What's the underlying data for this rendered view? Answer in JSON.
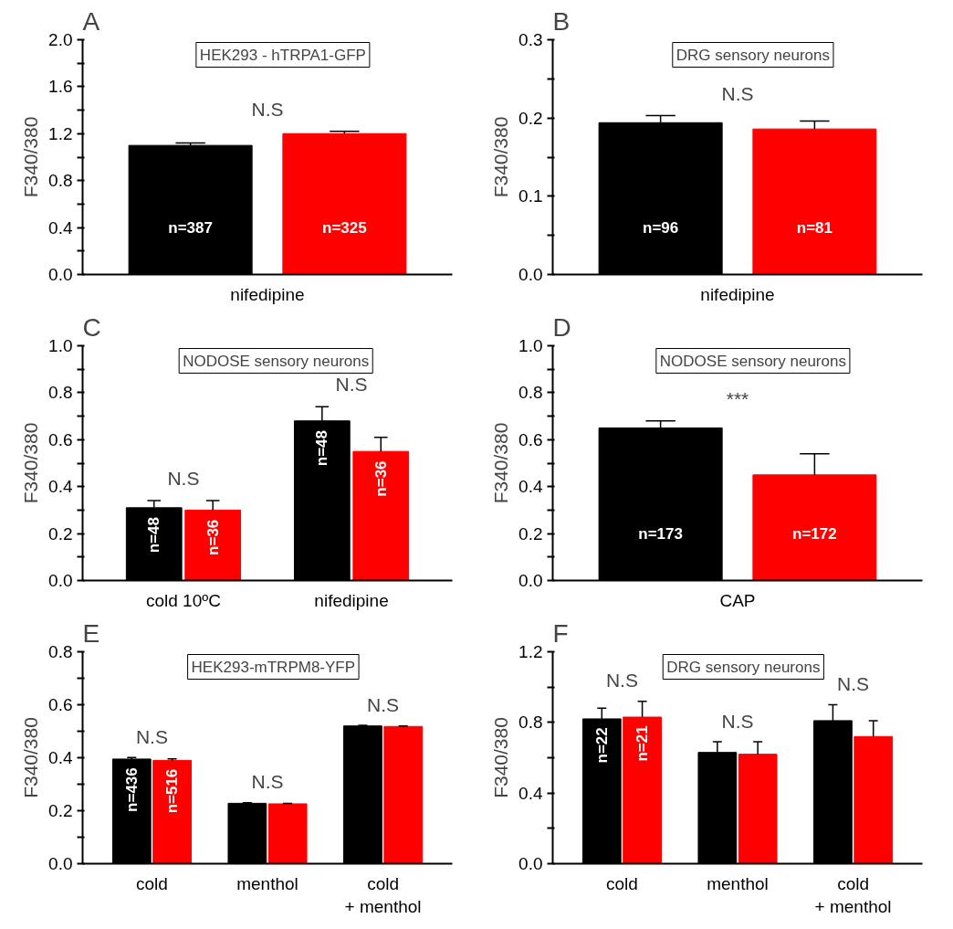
{
  "chart_data": [
    {
      "type": "bar",
      "title": "HEK293 - hTRPA1-GFP",
      "ylabel": "F340/380",
      "categories": [
        "nifedipine"
      ],
      "series": [
        {
          "color": "#000000",
          "values": [
            1.1
          ],
          "errors": [
            0.02
          ]
        },
        {
          "color": "#ff0000",
          "values": [
            1.2
          ],
          "errors": [
            0.02
          ]
        }
      ],
      "ylim": [
        0,
        2
      ],
      "yticks": [
        {
          "value": 0,
          "label": "0.0"
        },
        {
          "value": 0.2,
          "label": null
        },
        {
          "value": 0.4,
          "label": "0.4"
        },
        {
          "value": 0.6,
          "label": null
        },
        {
          "value": 0.8,
          "label": "0.8"
        },
        {
          "value": 1,
          "label": null
        },
        {
          "value": 1.2,
          "label": "1.2"
        },
        {
          "value": 1.4,
          "label": null
        },
        {
          "value": 1.6,
          "label": "1.6"
        },
        {
          "value": 1.8,
          "label": null
        },
        {
          "value": 2,
          "label": "2.0"
        }
      ],
      "annotations": [
        "A",
        "N.S",
        "n=387",
        "n=325"
      ]
    },
    {
      "type": "bar",
      "title": "DRG sensory neurons",
      "ylabel": "F340/380",
      "categories": [
        "nifedipine"
      ],
      "series": [
        {
          "color": "#000000",
          "values": [
            0.194
          ],
          "errors": [
            0.009
          ]
        },
        {
          "color": "#ff0000",
          "values": [
            0.186
          ],
          "errors": [
            0.01
          ]
        }
      ],
      "ylim": [
        0,
        0.3
      ],
      "yticks": [
        {
          "value": 0,
          "label": "0.0"
        },
        {
          "value": 0.05,
          "label": null
        },
        {
          "value": 0.1,
          "label": "0.1"
        },
        {
          "value": 0.15,
          "label": null
        },
        {
          "value": 0.2,
          "label": "0.2"
        },
        {
          "value": 0.25,
          "label": null
        },
        {
          "value": 0.3,
          "label": "0.3"
        }
      ],
      "annotations": [
        "B",
        "N.S",
        "n=96",
        "n=81"
      ]
    },
    {
      "type": "bar",
      "title": "NODOSE sensory neurons",
      "ylabel": "F340/380",
      "categories": [
        "cold 10ºC",
        "nifedipine"
      ],
      "series": [
        {
          "color": "#000000",
          "values": [
            0.31,
            0.68
          ],
          "errors": [
            0.03,
            0.06
          ]
        },
        {
          "color": "#ff0000",
          "values": [
            0.3,
            0.55
          ],
          "errors": [
            0.04,
            0.06
          ]
        }
      ],
      "ylim": [
        0,
        1
      ],
      "yticks": [
        {
          "value": 0,
          "label": "0.0"
        },
        {
          "value": 0.1,
          "label": null
        },
        {
          "value": 0.2,
          "label": "0.2"
        },
        {
          "value": 0.3,
          "label": null
        },
        {
          "value": 0.4,
          "label": "0.4"
        },
        {
          "value": 0.5,
          "label": null
        },
        {
          "value": 0.6,
          "label": "0.6"
        },
        {
          "value": 0.7,
          "label": null
        },
        {
          "value": 0.8,
          "label": "0.8"
        },
        {
          "value": 0.9,
          "label": null
        },
        {
          "value": 1,
          "label": "1.0"
        }
      ],
      "annotations": [
        "C",
        "N.S",
        "N.S",
        {
          "text": "n=48",
          "x": "cold 10ºC",
          "y": 0.31
        },
        {
          "text": "n=36",
          "x": "cold 10ºC",
          "y": 0.3
        },
        {
          "text": "n=48",
          "x": "nifedipine",
          "y": 0.68
        },
        {
          "text": "n=36",
          "x": "nifedipine",
          "y": 0.55
        }
      ]
    },
    {
      "type": "bar",
      "title": "NODOSE sensory neurons",
      "ylabel": "F340/380",
      "categories": [
        "CAP"
      ],
      "series": [
        {
          "color": "#000000",
          "values": [
            0.65
          ],
          "errors": [
            0.03
          ]
        },
        {
          "color": "#ff0000",
          "values": [
            0.45
          ],
          "errors": [
            0.09
          ]
        }
      ],
      "ylim": [
        0,
        1
      ],
      "yticks": [
        {
          "value": 0,
          "label": "0.0"
        },
        {
          "value": 0.1,
          "label": null
        },
        {
          "value": 0.2,
          "label": "0.2"
        },
        {
          "value": 0.3,
          "label": null
        },
        {
          "value": 0.4,
          "label": "0.4"
        },
        {
          "value": 0.5,
          "label": null
        },
        {
          "value": 0.6,
          "label": "0.6"
        },
        {
          "value": 0.7,
          "label": null
        },
        {
          "value": 0.8,
          "label": "0.8"
        },
        {
          "value": 0.9,
          "label": null
        },
        {
          "value": 1,
          "label": "1.0"
        }
      ],
      "annotations": [
        "D",
        "***",
        "n=173",
        "n=172"
      ]
    },
    {
      "type": "bar",
      "title": "HEK293-mTRPM8-YFP",
      "ylabel": "F340/380",
      "categories": [
        "cold",
        "menthol",
        "cold\n+ menthol"
      ],
      "series": [
        {
          "color": "#000000",
          "values": [
            0.395,
            0.228,
            0.52
          ],
          "errors": [
            0.006,
            0.002,
            0.002
          ]
        },
        {
          "color": "#ff0000",
          "values": [
            0.39,
            0.226,
            0.518
          ],
          "errors": [
            0.006,
            0.002,
            0.002
          ]
        }
      ],
      "ylim": [
        0,
        0.8
      ],
      "yticks": [
        {
          "value": 0,
          "label": "0.0"
        },
        {
          "value": 0.1,
          "label": null
        },
        {
          "value": 0.2,
          "label": "0.2"
        },
        {
          "value": 0.3,
          "label": null
        },
        {
          "value": 0.4,
          "label": "0.4"
        },
        {
          "value": 0.5,
          "label": null
        },
        {
          "value": 0.6,
          "label": "0.6"
        },
        {
          "value": 0.7,
          "label": null
        },
        {
          "value": 0.8,
          "label": "0.8"
        }
      ],
      "annotations": [
        "E",
        "N.S",
        "N.S",
        "N.S",
        {
          "text": "n=436",
          "x": "cold",
          "y": 0.395
        },
        {
          "text": "n=516",
          "x": "cold",
          "y": 0.39
        }
      ]
    },
    {
      "type": "bar",
      "title": "DRG sensory neurons",
      "ylabel": "F340/380",
      "categories": [
        "cold",
        "menthol",
        "cold\n+ menthol"
      ],
      "series": [
        {
          "color": "#000000",
          "values": [
            0.82,
            0.63,
            0.81
          ],
          "errors": [
            0.06,
            0.06,
            0.09
          ]
        },
        {
          "color": "#ff0000",
          "values": [
            0.83,
            0.62,
            0.72
          ],
          "errors": [
            0.09,
            0.07,
            0.09
          ]
        }
      ],
      "ylim": [
        0,
        1.2
      ],
      "yticks": [
        {
          "value": 0,
          "label": "0.0"
        },
        {
          "value": 0.2,
          "label": null
        },
        {
          "value": 0.4,
          "label": "0.4"
        },
        {
          "value": 0.6,
          "label": null
        },
        {
          "value": 0.8,
          "label": "0.8"
        },
        {
          "value": 1,
          "label": null
        },
        {
          "value": 1.2,
          "label": "1.2"
        }
      ],
      "annotations": [
        "F",
        "N.S",
        "N.S",
        "N.S",
        {
          "text": "n=22",
          "x": "cold",
          "y": 0.82
        },
        {
          "text": "n=21",
          "x": "cold",
          "y": 0.83
        }
      ]
    }
  ]
}
